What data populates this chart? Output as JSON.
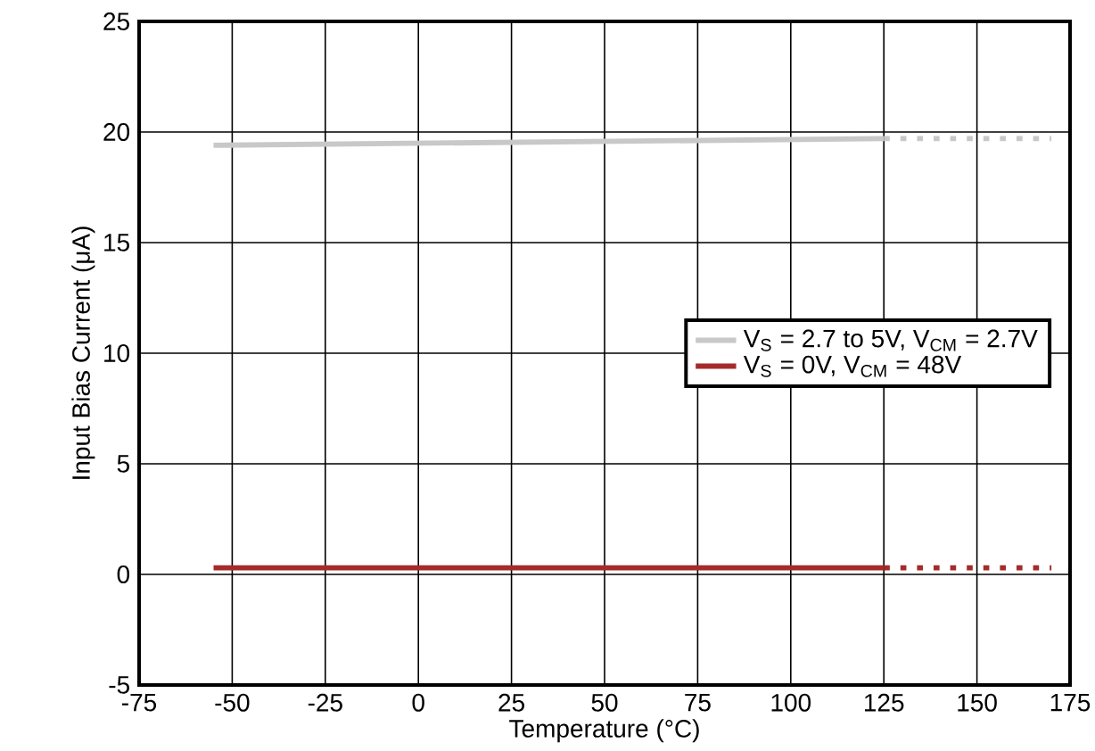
{
  "chart_data": {
    "type": "line",
    "xlabel": "Temperature (°C)",
    "ylabel": "Input Bias Current (μA)",
    "series": [
      {
        "name": "V$_{S}$ = 2.7 to 5V, V$_{CM}$ = 2.7V",
        "color": "#c8c8c8",
        "x": [
          -55,
          125
        ],
        "values": [
          19.4,
          19.7
        ],
        "line_style": "solid"
      },
      {
        "name": "V$_{S}$ = 0V, V$_{CM}$ = 48V",
        "color": "#a52a2a",
        "x": [
          -55,
          125
        ],
        "values": [
          0.3,
          0.3
        ],
        "line_style": "solid"
      },
      {
        "color": "#c8c8c8",
        "x": [
          125,
          170
        ],
        "values": [
          19.7,
          19.7
        ],
        "line_style": "dotted"
      },
      {
        "color": "#a52a2a",
        "x": [
          125,
          170
        ],
        "values": [
          0.3,
          0.3
        ],
        "line_style": "dotted"
      }
    ],
    "xlim": [
      -75,
      175
    ],
    "xticks": [
      -75,
      -50,
      -25,
      0,
      25,
      50,
      75,
      100,
      125,
      150,
      175
    ],
    "ylim": [
      -5,
      25
    ],
    "yticks": [
      -5,
      0,
      5,
      10,
      15,
      20,
      25
    ],
    "grid": true,
    "legend": "right",
    "marker": "none"
  }
}
